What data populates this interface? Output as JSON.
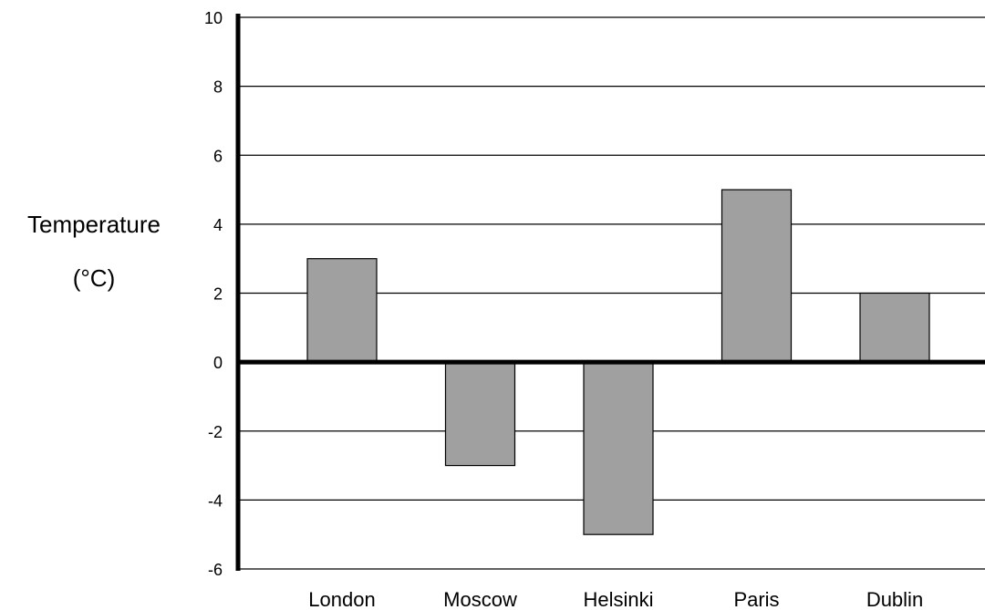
{
  "chart_data": {
    "type": "bar",
    "categories": [
      "London",
      "Moscow",
      "Helsinki",
      "Paris",
      "Dublin"
    ],
    "values": [
      3,
      -3,
      -5,
      5,
      2
    ],
    "ylabel": [
      "Temperature",
      "(°C)"
    ],
    "ylim": [
      -6,
      10
    ],
    "yticks": [
      "10",
      "8",
      "6",
      "4",
      "2",
      "0",
      "-2",
      "-4",
      "-6"
    ],
    "grid": true,
    "colors": {
      "bar_fill": "#a0a0a0",
      "bar_stroke": "#000000",
      "grid": "#000000"
    }
  }
}
